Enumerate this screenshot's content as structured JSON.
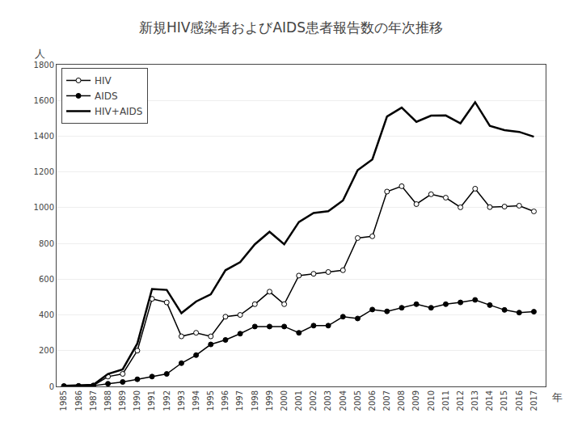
{
  "chart_data": {
    "type": "line",
    "title": "新規HIV感染者およびAIDS患者報告数の年次推移",
    "xlabel": "年",
    "ylabel": "人",
    "x": [
      1985,
      1986,
      1987,
      1988,
      1989,
      1990,
      1991,
      1992,
      1993,
      1994,
      1995,
      1996,
      1997,
      1998,
      1999,
      2000,
      2001,
      2002,
      2003,
      2004,
      2005,
      2006,
      2007,
      2008,
      2009,
      2010,
      2011,
      2012,
      2013,
      2014,
      2015,
      2016,
      2017
    ],
    "series": [
      {
        "name": "HIV",
        "color": "#000000",
        "marker": "circle-open",
        "values": [
          2,
          3,
          5,
          55,
          70,
          200,
          490,
          470,
          280,
          300,
          280,
          390,
          400,
          460,
          530,
          460,
          620,
          630,
          640,
          650,
          830,
          840,
          1090,
          1120,
          1020,
          1075,
          1056,
          1002,
          1106,
          1003,
          1006,
          1011,
          979
        ]
      },
      {
        "name": "AIDS",
        "color": "#000000",
        "marker": "circle",
        "values": [
          1,
          2,
          4,
          15,
          25,
          40,
          55,
          70,
          130,
          175,
          235,
          260,
          295,
          335,
          335,
          335,
          300,
          340,
          340,
          390,
          380,
          430,
          420,
          440,
          460,
          440,
          460,
          470,
          484,
          455,
          428,
          413,
          418
        ]
      },
      {
        "name": "HIV+AIDS",
        "color": "#000000",
        "marker": "none",
        "values": [
          3,
          5,
          9,
          70,
          95,
          240,
          545,
          540,
          410,
          475,
          515,
          650,
          695,
          795,
          865,
          795,
          920,
          970,
          980,
          1040,
          1210,
          1270,
          1510,
          1560,
          1480,
          1515,
          1516,
          1472,
          1590,
          1458,
          1434,
          1424,
          1397
        ]
      }
    ],
    "xlim": [
      1984.5,
      2017.8
    ],
    "xticks": [
      1985,
      1986,
      1987,
      1988,
      1989,
      1990,
      1991,
      1992,
      1993,
      1994,
      1995,
      1996,
      1997,
      1998,
      1999,
      2000,
      2001,
      2002,
      2003,
      2004,
      2005,
      2006,
      2007,
      2008,
      2009,
      2010,
      2011,
      2012,
      2013,
      2014,
      2015,
      2016,
      2017
    ],
    "ylim": [
      0,
      1800
    ],
    "yticks": [
      0,
      200,
      400,
      600,
      800,
      1000,
      1200,
      1400,
      1600,
      1800
    ],
    "grid": "y",
    "legend": "upper left"
  }
}
